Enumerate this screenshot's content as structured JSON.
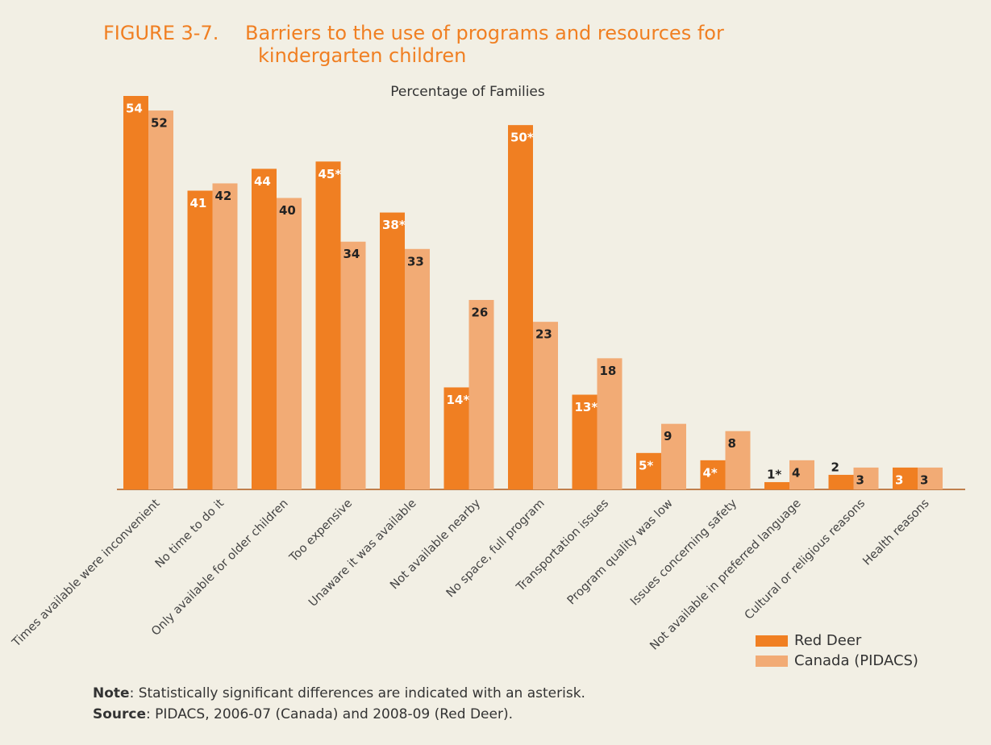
{
  "chart_data": {
    "type": "bar",
    "figure": "FIGURE 3-7.",
    "title": [
      "Barriers to the use of programs and resources for",
      "kindergarten children"
    ],
    "subtitle": "Percentage of Families",
    "categories": [
      "Times available were inconvenient",
      "No time to do it",
      "Only available for older children",
      "Too expensive",
      "Unaware it was available",
      "Not available nearby",
      "No space, full program",
      "Transportation issues",
      "Program quality was low",
      "Issues concerning safety",
      "Not available in preferred language",
      "Cultural or religious reasons",
      "Health reasons"
    ],
    "series": [
      {
        "name": "Red Deer",
        "color": "#f07f22",
        "values": [
          54,
          41,
          44,
          45,
          38,
          14,
          50,
          13,
          5,
          4,
          1,
          2,
          3
        ],
        "value_labels": [
          "54",
          "41",
          "44",
          "45*",
          "38*",
          "14*",
          "50*",
          "13*",
          "5*",
          "4*",
          "1*",
          "2",
          "3"
        ]
      },
      {
        "name": "Canada (PIDACS)",
        "color": "#f2ab75",
        "values": [
          52,
          42,
          40,
          34,
          33,
          26,
          23,
          18,
          9,
          8,
          4,
          3,
          3
        ]
      }
    ],
    "ylim": [
      0,
      54
    ],
    "notes": [
      {
        "label": "Note",
        "text": ": Statistically significant differences are indicated with an asterisk."
      },
      {
        "label": "Source",
        "text": ": PIDACS, 2006-07 (Canada) and 2008-09 (Red Deer)."
      }
    ]
  }
}
